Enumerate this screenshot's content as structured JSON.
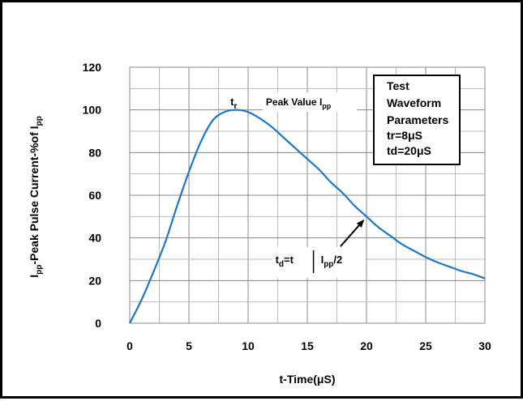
{
  "chart_data": {
    "type": "line",
    "xlabel": "t-Time(μS)",
    "ylabel": {
      "main": "I",
      "sub1": "pp",
      "rest": "-Peak Pulse Current-%of I",
      "sub2": "pp"
    },
    "xlim": [
      0,
      30
    ],
    "ylim": [
      0,
      120
    ],
    "x_ticks": [
      0,
      5,
      10,
      15,
      20,
      25,
      30
    ],
    "y_ticks": [
      0,
      20,
      40,
      60,
      80,
      100,
      120
    ],
    "x_minor_step": 2.5,
    "y_minor_step": 10,
    "grid": true,
    "series": [
      {
        "color": "#1f77c4",
        "x": [
          0,
          1,
          2,
          3,
          4,
          5,
          6,
          7,
          8,
          9,
          10,
          11,
          12,
          13,
          14,
          15,
          16,
          17,
          18,
          19,
          20,
          21,
          22,
          23,
          24,
          25,
          26,
          27,
          28,
          29,
          30
        ],
        "y": [
          0,
          11,
          24,
          38,
          55,
          71,
          85,
          95,
          99,
          100,
          99,
          96,
          92,
          87,
          82,
          77,
          72,
          66,
          61,
          55,
          50,
          45,
          41,
          37,
          34,
          31,
          28.5,
          26.5,
          24.5,
          23,
          21
        ]
      }
    ],
    "annotations": {
      "tr": {
        "main": "t",
        "sub": "r",
        "x": 8.5,
        "y": 104
      },
      "peak": {
        "text": "Peak Value I",
        "sub": "pp",
        "x": 11.5,
        "y": 104
      },
      "td": {
        "main": "t",
        "sub": "d",
        "mid": "=t",
        "ipp": "I",
        "ipp_sub": "pp",
        "ipp_rest": "/2",
        "x": 12.3,
        "y": 30
      },
      "arrow": {
        "x1": 17.8,
        "y1": 36,
        "x2": 20,
        "y2": 50
      }
    },
    "legend": {
      "placement": "top-right",
      "lines": [
        "Test",
        "Waveform",
        "Parameters",
        "tr=8μS",
        "td=20μS"
      ]
    }
  }
}
